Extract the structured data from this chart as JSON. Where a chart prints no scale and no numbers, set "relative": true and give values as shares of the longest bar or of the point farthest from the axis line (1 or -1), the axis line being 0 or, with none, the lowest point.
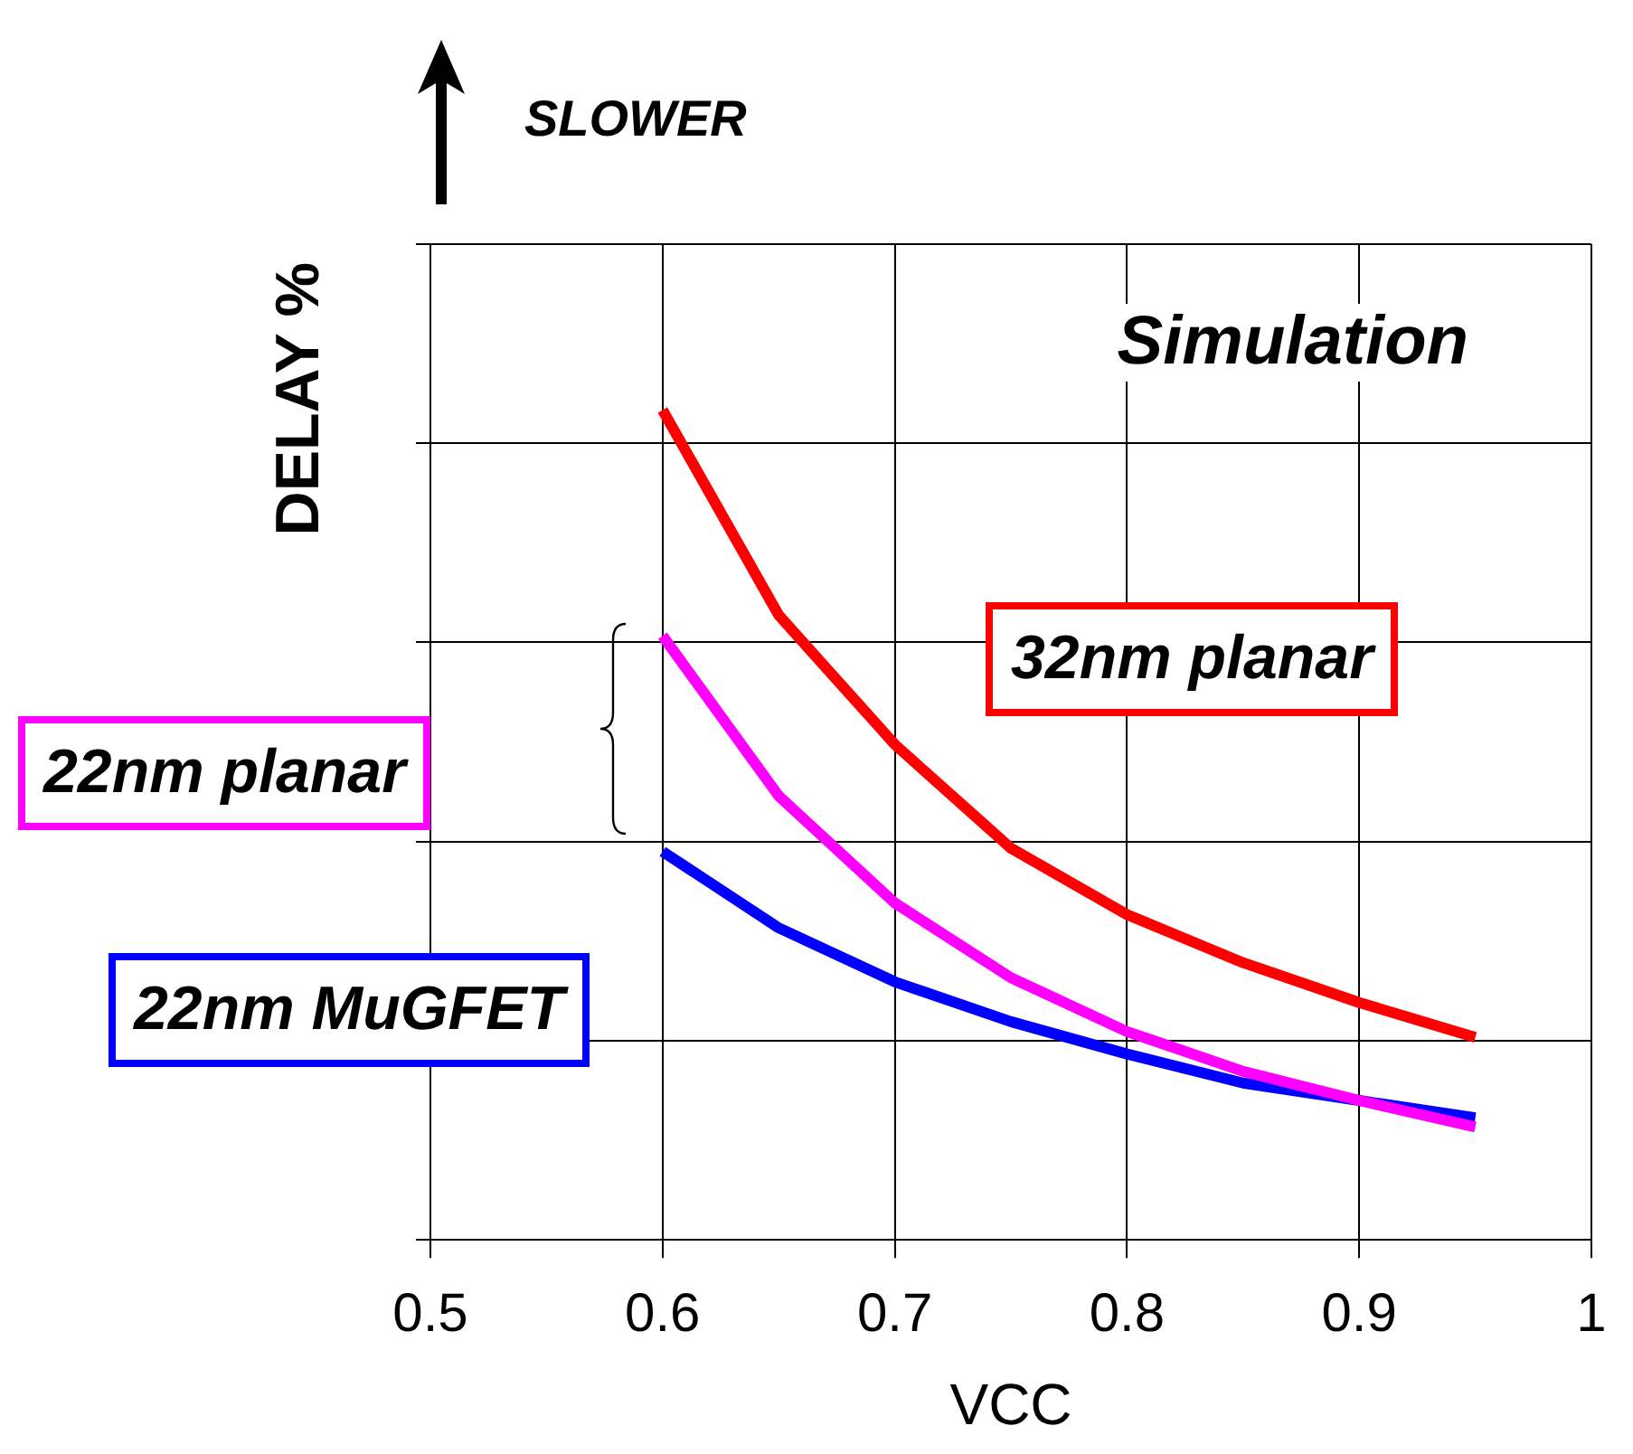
{
  "chart_data": {
    "type": "line",
    "relative": true,
    "xlabel": "VCC",
    "ylabel": "DELAY %",
    "annotations": [
      "SLOWER",
      "Simulation"
    ],
    "x": [
      0.6,
      0.65,
      0.7,
      0.75,
      0.8,
      0.85,
      0.9,
      0.95
    ],
    "xlim": [
      0.5,
      1
    ],
    "xticks": [
      0.5,
      0.6,
      0.7,
      0.8,
      0.9,
      {
        "value": 1,
        "label": "1"
      }
    ],
    "grid": true,
    "legend": false,
    "marker": "none",
    "line_style": "solid",
    "series": [
      {
        "name": "32nm planar",
        "color": "#ff0000",
        "values": [
          1,
          0.753,
          0.597,
          0.472,
          0.392,
          0.334,
          0.286,
          0.244
        ]
      },
      {
        "name": "22nm planar",
        "color": "#ff00ff",
        "values": [
          0.728,
          0.535,
          0.406,
          0.316,
          0.251,
          0.203,
          0.168,
          0.136
        ]
      },
      {
        "name": "22nm MuGFET",
        "color": "#0000ff",
        "values": [
          0.468,
          0.376,
          0.311,
          0.263,
          0.224,
          0.189,
          0.168,
          0.147
        ]
      }
    ]
  }
}
